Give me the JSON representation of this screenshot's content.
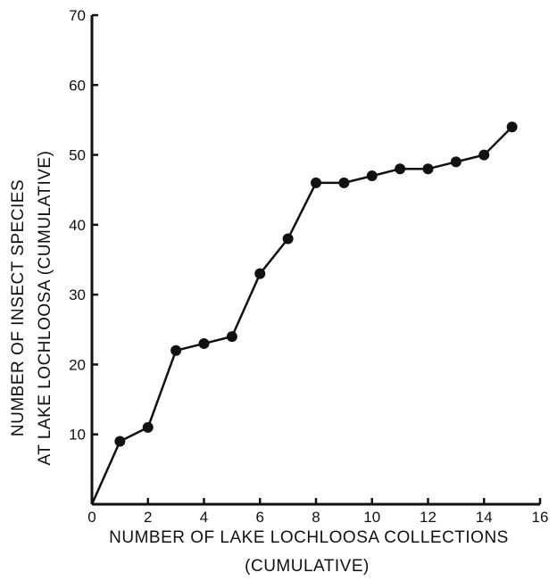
{
  "chart_data": {
    "type": "line",
    "title": "",
    "xlabel": "NUMBER OF LAKE LOCHLOOSA COLLECTIONS",
    "xlabel_note": "(CUMULATIVE)",
    "ylabel": "NUMBER OF INSECT SPECIES",
    "ylabel_line2": "AT LAKE LOCHLOOSA (CUMULATIVE)",
    "xlim": [
      0,
      16
    ],
    "ylim": [
      0,
      70
    ],
    "xticks": [
      0,
      2,
      4,
      6,
      8,
      10,
      12,
      14,
      16
    ],
    "yticks": [
      10,
      20,
      30,
      40,
      50,
      60,
      70
    ],
    "grid": false,
    "series": [
      {
        "x": [
          0,
          1,
          2,
          3,
          4,
          5,
          6,
          7,
          8,
          9,
          10,
          11,
          12,
          13,
          14,
          15
        ],
        "y": [
          0,
          9,
          11,
          22,
          23,
          24,
          33,
          38,
          46,
          46,
          47,
          48,
          48,
          49,
          50,
          54
        ]
      }
    ],
    "colors": {
      "line": "#111111",
      "marker": "#111111",
      "axis": "#111111"
    }
  }
}
